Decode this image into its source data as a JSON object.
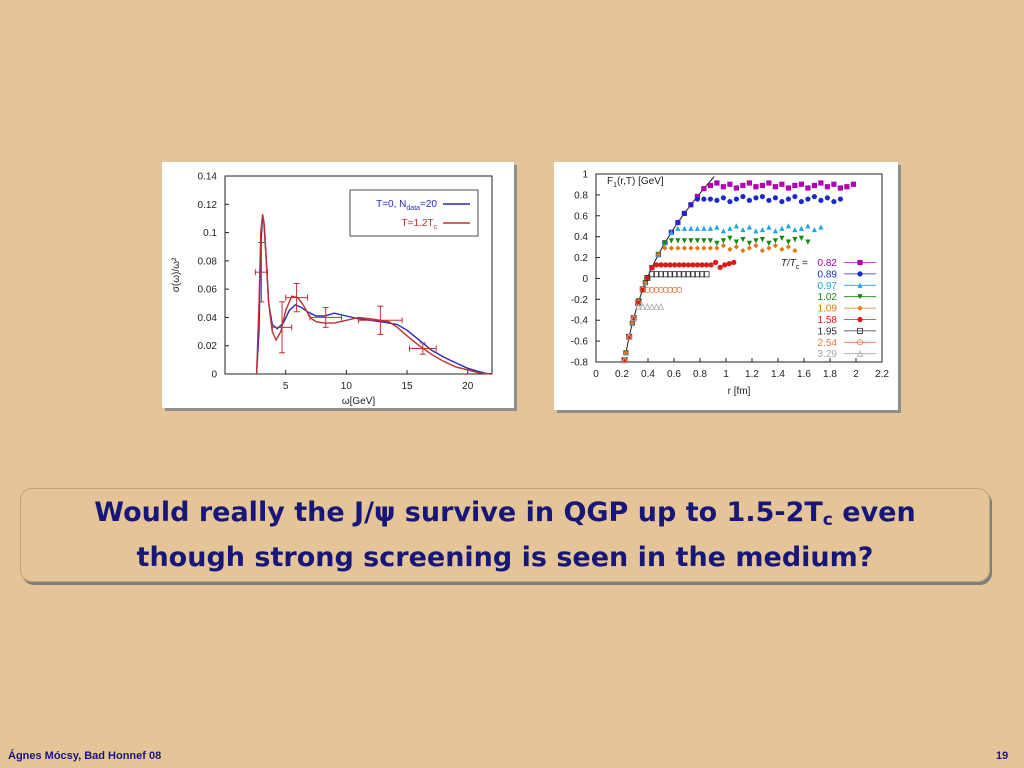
{
  "slide": {
    "headline": {
      "part1": "Would really the ",
      "jpsi": "J/ψ",
      "part2": " survive in QGP up to 1.5-2T",
      "sub": "c",
      "part3": " even",
      "line2": "though strong screening is seen in the medium?"
    },
    "footer_left": "Ágnes Mócsy, Bad Honnef 08",
    "page_number": "19"
  },
  "chart_data": [
    {
      "type": "line",
      "xlabel": "ω[GeV]",
      "ylabel": "σ(ω)/ω²",
      "xlim": [
        0,
        22
      ],
      "ylim": [
        0,
        0.14
      ],
      "xticks": [
        "5",
        "10",
        "15",
        "20"
      ],
      "yticks": [
        "0",
        "0.02",
        "0.04",
        "0.06",
        "0.08",
        "0.1",
        "0.12",
        "0.14"
      ],
      "grid": false,
      "legend": "top-right",
      "series": [
        {
          "name": "T=0, N_data=20",
          "legend_main": "T=0, N",
          "legend_sub": "data",
          "legend_tail": "=20",
          "color": "#2a2ab8",
          "x": [
            2.6,
            2.8,
            2.95,
            3.1,
            3.2,
            3.4,
            3.6,
            3.9,
            4.3,
            4.8,
            5.3,
            5.8,
            6.3,
            6.8,
            7.5,
            8.2,
            9,
            10,
            11,
            12,
            12.8,
            13.5,
            14.2,
            15,
            16,
            17,
            18,
            19,
            20,
            20.8,
            21.5,
            22
          ],
          "y": [
            0,
            0.03,
            0.09,
            0.112,
            0.108,
            0.08,
            0.05,
            0.035,
            0.032,
            0.036,
            0.045,
            0.049,
            0.047,
            0.044,
            0.041,
            0.041,
            0.043,
            0.041,
            0.039,
            0.038,
            0.037,
            0.036,
            0.035,
            0.031,
            0.024,
            0.017,
            0.012,
            0.008,
            0.004,
            0.002,
            0.0005,
            0
          ]
        },
        {
          "name": "T=1.2T_c",
          "legend_main": "T=1.2T",
          "legend_sub": "c",
          "legend_tail": "",
          "color": "#c03030",
          "x": [
            2.6,
            2.8,
            2.95,
            3.1,
            3.25,
            3.4,
            3.6,
            3.9,
            4.2,
            4.6,
            5,
            5.5,
            6,
            6.5,
            7,
            7.5,
            8.2,
            9,
            10,
            11,
            12,
            12.8,
            13.5,
            14.2,
            15,
            16,
            17,
            18,
            19,
            20,
            20.8,
            21.5,
            22
          ],
          "y": [
            0,
            0.05,
            0.1,
            0.113,
            0.105,
            0.08,
            0.05,
            0.03,
            0.024,
            0.03,
            0.045,
            0.055,
            0.054,
            0.048,
            0.04,
            0.037,
            0.036,
            0.036,
            0.038,
            0.04,
            0.039,
            0.038,
            0.037,
            0.033,
            0.027,
            0.02,
            0.014,
            0.009,
            0.005,
            0.003,
            0.001,
            0.0003,
            0
          ]
        }
      ],
      "error_bars": [
        {
          "x": 3.0,
          "y": 0.072,
          "xerr": 0.5,
          "yerr": 0.021
        },
        {
          "x": 4.7,
          "y": 0.033,
          "xerr": 0.8,
          "yerr": 0.018
        },
        {
          "x": 5.9,
          "y": 0.054,
          "xerr": 0.9,
          "yerr": 0.01
        },
        {
          "x": 8.3,
          "y": 0.04,
          "xerr": 1.3,
          "yerr": 0.007
        },
        {
          "x": 12.8,
          "y": 0.038,
          "xerr": 1.8,
          "yerr": 0.01
        },
        {
          "x": 16.3,
          "y": 0.018,
          "xerr": 1.1,
          "yerr": 0.004
        }
      ]
    },
    {
      "type": "scatter",
      "title": "F₁(r,T) [GeV]",
      "xlabel": "r [fm]",
      "xlim": [
        0,
        2.2
      ],
      "ylim": [
        -0.8,
        1.0
      ],
      "xticks": [
        "0",
        "0.2",
        "0.4",
        "0.6",
        "0.8",
        "1",
        "1.2",
        "1.4",
        "1.6",
        "1.8",
        "2",
        "2.2"
      ],
      "yticks": [
        "-0.8",
        "-0.6",
        "-0.4",
        "-0.2",
        "0",
        "0.2",
        "0.4",
        "0.6",
        "0.8",
        "1"
      ],
      "grid": false,
      "legend": "bottom-right",
      "legend_title": "T/T",
      "legend_title_sub": "c",
      "legend_title_eq": " =",
      "curve_color": "#1a1a1a",
      "series": [
        {
          "name": "0.82",
          "color": "#b000b0",
          "marker": "square",
          "plateau": 0.88,
          "rmax": 2.0
        },
        {
          "name": "0.89",
          "color": "#1a2ac8",
          "marker": "circle",
          "plateau": 0.75,
          "rmax": 1.9
        },
        {
          "name": "0.97",
          "color": "#1aa8e6",
          "marker": "triangle-up",
          "plateau": 0.47,
          "rmax": 1.75
        },
        {
          "name": "1.02",
          "color": "#108a10",
          "marker": "triangle-down",
          "plateau": 0.35,
          "rmax": 1.65
        },
        {
          "name": "1.09",
          "color": "#e07a10",
          "marker": "diamond",
          "plateau": 0.28,
          "rmax": 1.55
        },
        {
          "name": "1.58",
          "color": "#e01818",
          "marker": "circle",
          "plateau": 0.12,
          "rmax": 1.07
        },
        {
          "name": "1.95",
          "color": "#303030",
          "marker": "open-square",
          "plateau": 0.03,
          "rmax": 0.85
        },
        {
          "name": "2.54",
          "color": "#f07840",
          "marker": "open-circle",
          "plateau": -0.12,
          "rmax": 0.65
        },
        {
          "name": "3.29",
          "color": "#a8a8a8",
          "marker": "open-triangle",
          "plateau": -0.28,
          "rmax": 0.52
        }
      ]
    }
  ]
}
